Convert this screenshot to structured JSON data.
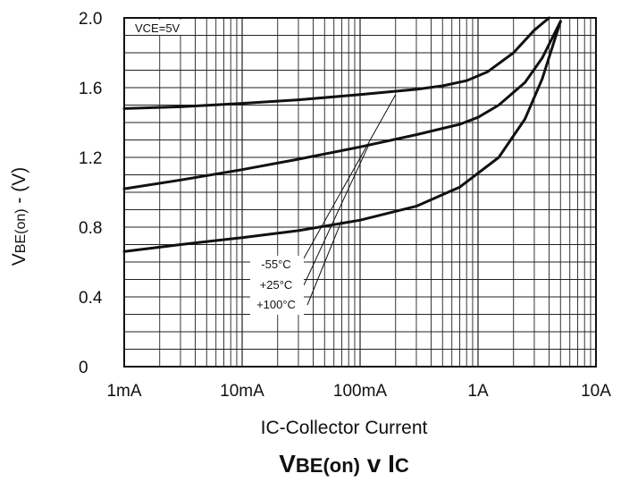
{
  "chart_data": {
    "type": "line",
    "title": "VBE(on) v IC",
    "title_parts": {
      "v1": "V",
      "sub1": "BE(on)",
      "mid": " v I",
      "sub2": "C"
    },
    "xlabel": "IC-Collector Current",
    "ylabel": "VBE(on) - (V)",
    "ylabel_parts": {
      "v": "V",
      "sub": "BE(on)",
      "rest": " - (V)"
    },
    "x_scale": "log",
    "xlim_A": [
      0.001,
      10
    ],
    "ylim": [
      0,
      2.0
    ],
    "x_tick_labels": [
      "1mA",
      "10mA",
      "100mA",
      "1A",
      "10A"
    ],
    "x_tick_values_A": [
      0.001,
      0.01,
      0.1,
      1,
      10
    ],
    "y_tick_labels": [
      "0",
      "0.4",
      "0.8",
      "1.2",
      "1.6",
      "2.0"
    ],
    "y_tick_values": [
      0,
      0.4,
      0.8,
      1.2,
      1.6,
      2.0
    ],
    "grid": true,
    "condition_label": "VCE=5V",
    "series": [
      {
        "name": "-55°C",
        "x_A": [
          0.001,
          0.003,
          0.01,
          0.03,
          0.1,
          0.3,
          0.5,
          0.8,
          1.2,
          2,
          3,
          4
        ],
        "y": [
          1.48,
          1.49,
          1.51,
          1.53,
          1.56,
          1.59,
          1.61,
          1.64,
          1.69,
          1.8,
          1.93,
          2.0
        ]
      },
      {
        "name": "+25°C",
        "x_A": [
          0.001,
          0.003,
          0.01,
          0.03,
          0.1,
          0.3,
          0.7,
          1,
          1.5,
          2.5,
          3.5,
          5
        ],
        "y": [
          1.02,
          1.07,
          1.13,
          1.19,
          1.26,
          1.33,
          1.39,
          1.43,
          1.5,
          1.63,
          1.77,
          1.98
        ]
      },
      {
        "name": "+100°C",
        "x_A": [
          0.001,
          0.003,
          0.01,
          0.03,
          0.1,
          0.3,
          0.7,
          1.5,
          2.5,
          3.5,
          5
        ],
        "y": [
          0.66,
          0.7,
          0.74,
          0.78,
          0.84,
          0.92,
          1.03,
          1.2,
          1.42,
          1.65,
          1.98
        ]
      }
    ],
    "legend_labels": [
      "-55°C",
      "+25°C",
      "+100°C"
    ],
    "legend_placement": "lower-middle annotation with leader lines to each curve"
  }
}
